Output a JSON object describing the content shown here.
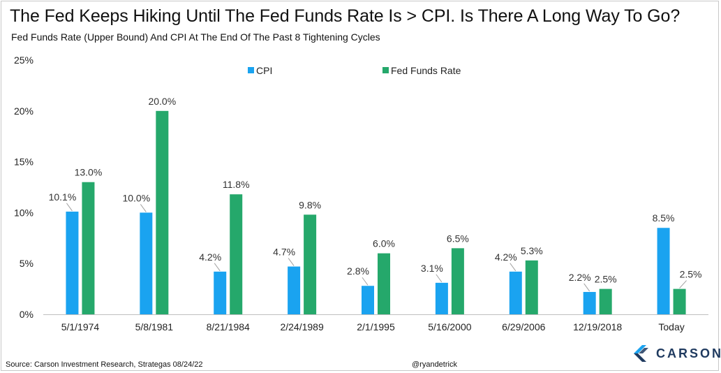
{
  "header": {
    "title": "The Fed Keeps Hiking Until The Fed Funds Rate Is > CPI. Is There A Long Way To Go?",
    "subtitle": "Fed Funds Rate (Upper Bound) And CPI At The End Of The Past 8 Tightening Cycles"
  },
  "footer": {
    "source": "Source: Carson Investment Research, Strategas 08/24/22",
    "handle": "@ryandetrick",
    "brand": "CARSON"
  },
  "colors": {
    "cpi": "#1aa3f0",
    "fed": "#25a86b",
    "brand": "#1f3a5f",
    "brand_accent": "#1aa3f0"
  },
  "chart_data": {
    "type": "bar",
    "title": "The Fed Keeps Hiking Until The Fed Funds Rate Is > CPI. Is There A Long Way To Go?",
    "xlabel": "",
    "ylabel": "",
    "ylim": [
      0,
      25
    ],
    "yticks": [
      "0%",
      "5%",
      "10%",
      "15%",
      "20%",
      "25%"
    ],
    "legend_position": "top",
    "categories": [
      "5/1/1974",
      "5/8/1981",
      "8/21/1984",
      "2/24/1989",
      "2/1/1995",
      "5/16/2000",
      "6/29/2006",
      "12/19/2018",
      "Today"
    ],
    "series": [
      {
        "name": "CPI",
        "values": [
          10.1,
          10.0,
          4.2,
          4.7,
          2.8,
          3.1,
          4.2,
          2.2,
          8.5
        ],
        "labels": [
          "10.1%",
          "10.0%",
          "4.2%",
          "4.7%",
          "2.8%",
          "3.1%",
          "4.2%",
          "2.2%",
          "8.5%"
        ]
      },
      {
        "name": "Fed Funds Rate",
        "values": [
          13.0,
          20.0,
          11.8,
          9.8,
          6.0,
          6.5,
          5.3,
          2.5,
          2.5
        ],
        "labels": [
          "13.0%",
          "20.0%",
          "11.8%",
          "9.8%",
          "6.0%",
          "6.5%",
          "5.3%",
          "2.5%",
          "2.5%"
        ]
      }
    ]
  }
}
